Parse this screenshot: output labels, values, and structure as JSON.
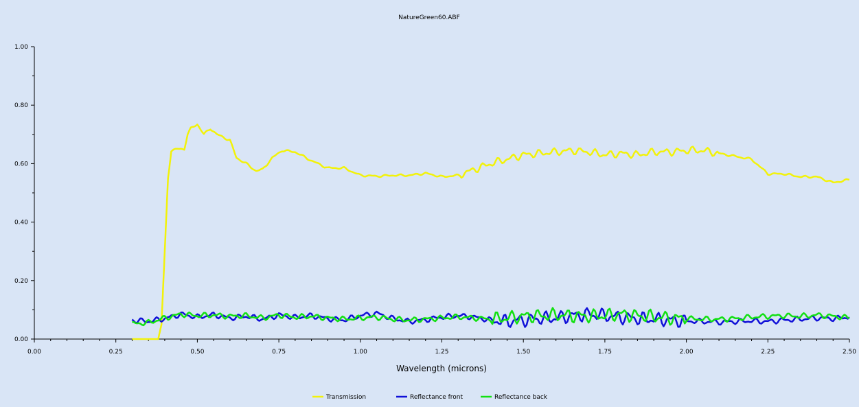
{
  "chart_data": {
    "type": "line",
    "title": "NatureGreen60.ABF",
    "xlabel": "Wavelength (microns)",
    "ylabel": "",
    "xlim": [
      0.0,
      2.5
    ],
    "ylim": [
      0.0,
      1.0
    ],
    "xticks": [
      "0.00",
      "0.25",
      "0.50",
      "0.75",
      "1.00",
      "1.25",
      "1.50",
      "1.75",
      "2.00",
      "2.25",
      "2.50"
    ],
    "yticks": [
      "0.00",
      "0.20",
      "0.40",
      "0.60",
      "0.80",
      "1.00"
    ],
    "grid": false,
    "legend_position": "bottom-center",
    "background_color": "#d9e5f6",
    "series": [
      {
        "name": "Transmission",
        "color": "#f2f20a",
        "points": [
          [
            0.3,
            0.0
          ],
          [
            0.38,
            0.0
          ],
          [
            0.39,
            0.05
          ],
          [
            0.4,
            0.3
          ],
          [
            0.41,
            0.55
          ],
          [
            0.42,
            0.645
          ],
          [
            0.44,
            0.65
          ],
          [
            0.46,
            0.65
          ],
          [
            0.47,
            0.7
          ],
          [
            0.48,
            0.72
          ],
          [
            0.5,
            0.735
          ],
          [
            0.52,
            0.7
          ],
          [
            0.54,
            0.72
          ],
          [
            0.56,
            0.7
          ],
          [
            0.58,
            0.69
          ],
          [
            0.6,
            0.68
          ],
          [
            0.62,
            0.62
          ],
          [
            0.65,
            0.6
          ],
          [
            0.68,
            0.575
          ],
          [
            0.7,
            0.58
          ],
          [
            0.73,
            0.62
          ],
          [
            0.76,
            0.645
          ],
          [
            0.8,
            0.64
          ],
          [
            0.85,
            0.61
          ],
          [
            0.9,
            0.585
          ],
          [
            0.95,
            0.585
          ],
          [
            1.0,
            0.56
          ],
          [
            1.05,
            0.557
          ],
          [
            1.1,
            0.56
          ],
          [
            1.15,
            0.56
          ],
          [
            1.2,
            0.567
          ],
          [
            1.25,
            0.555
          ],
          [
            1.3,
            0.56
          ],
          [
            1.35,
            0.58
          ],
          [
            1.4,
            0.6
          ],
          [
            1.45,
            0.615
          ],
          [
            1.5,
            0.63
          ],
          [
            1.55,
            0.635
          ],
          [
            1.6,
            0.64
          ],
          [
            1.65,
            0.645
          ],
          [
            1.7,
            0.64
          ],
          [
            1.75,
            0.63
          ],
          [
            1.8,
            0.635
          ],
          [
            1.85,
            0.63
          ],
          [
            1.9,
            0.64
          ],
          [
            1.95,
            0.64
          ],
          [
            2.0,
            0.645
          ],
          [
            2.05,
            0.645
          ],
          [
            2.1,
            0.635
          ],
          [
            2.15,
            0.625
          ],
          [
            2.2,
            0.615
          ],
          [
            2.25,
            0.565
          ],
          [
            2.3,
            0.565
          ],
          [
            2.35,
            0.555
          ],
          [
            2.4,
            0.555
          ],
          [
            2.45,
            0.535
          ],
          [
            2.5,
            0.545
          ]
        ]
      },
      {
        "name": "Reflectance front",
        "color": "#1010d8",
        "points": [
          [
            0.3,
            0.065
          ],
          [
            0.35,
            0.06
          ],
          [
            0.4,
            0.07
          ],
          [
            0.45,
            0.085
          ],
          [
            0.5,
            0.075
          ],
          [
            0.55,
            0.083
          ],
          [
            0.6,
            0.072
          ],
          [
            0.65,
            0.078
          ],
          [
            0.7,
            0.068
          ],
          [
            0.75,
            0.082
          ],
          [
            0.8,
            0.074
          ],
          [
            0.85,
            0.08
          ],
          [
            0.9,
            0.07
          ],
          [
            0.95,
            0.065
          ],
          [
            1.0,
            0.08
          ],
          [
            1.05,
            0.088
          ],
          [
            1.1,
            0.07
          ],
          [
            1.15,
            0.06
          ],
          [
            1.2,
            0.066
          ],
          [
            1.25,
            0.075
          ],
          [
            1.3,
            0.08
          ],
          [
            1.35,
            0.075
          ],
          [
            1.4,
            0.065
          ],
          [
            1.45,
            0.06
          ],
          [
            1.5,
            0.065
          ],
          [
            1.55,
            0.07
          ],
          [
            1.6,
            0.072
          ],
          [
            1.65,
            0.08
          ],
          [
            1.7,
            0.085
          ],
          [
            1.75,
            0.08
          ],
          [
            1.8,
            0.075
          ],
          [
            1.85,
            0.07
          ],
          [
            1.9,
            0.068
          ],
          [
            1.95,
            0.065
          ],
          [
            2.0,
            0.062
          ],
          [
            2.05,
            0.06
          ],
          [
            2.1,
            0.058
          ],
          [
            2.15,
            0.06
          ],
          [
            2.2,
            0.062
          ],
          [
            2.25,
            0.06
          ],
          [
            2.3,
            0.065
          ],
          [
            2.35,
            0.068
          ],
          [
            2.4,
            0.072
          ],
          [
            2.45,
            0.07
          ],
          [
            2.5,
            0.075
          ]
        ]
      },
      {
        "name": "Reflectance back",
        "color": "#12e012",
        "points": [
          [
            0.3,
            0.052
          ],
          [
            0.35,
            0.056
          ],
          [
            0.4,
            0.072
          ],
          [
            0.45,
            0.085
          ],
          [
            0.5,
            0.08
          ],
          [
            0.55,
            0.082
          ],
          [
            0.6,
            0.078
          ],
          [
            0.65,
            0.08
          ],
          [
            0.7,
            0.072
          ],
          [
            0.75,
            0.082
          ],
          [
            0.8,
            0.075
          ],
          [
            0.85,
            0.078
          ],
          [
            0.9,
            0.072
          ],
          [
            0.95,
            0.068
          ],
          [
            1.0,
            0.072
          ],
          [
            1.05,
            0.075
          ],
          [
            1.1,
            0.068
          ],
          [
            1.15,
            0.065
          ],
          [
            1.2,
            0.068
          ],
          [
            1.25,
            0.072
          ],
          [
            1.3,
            0.076
          ],
          [
            1.35,
            0.072
          ],
          [
            1.4,
            0.068
          ],
          [
            1.45,
            0.072
          ],
          [
            1.5,
            0.078
          ],
          [
            1.55,
            0.08
          ],
          [
            1.6,
            0.082
          ],
          [
            1.65,
            0.08
          ],
          [
            1.7,
            0.078
          ],
          [
            1.75,
            0.08
          ],
          [
            1.8,
            0.085
          ],
          [
            1.85,
            0.08
          ],
          [
            1.9,
            0.076
          ],
          [
            1.95,
            0.072
          ],
          [
            2.0,
            0.07
          ],
          [
            2.05,
            0.068
          ],
          [
            2.1,
            0.068
          ],
          [
            2.15,
            0.07
          ],
          [
            2.2,
            0.075
          ],
          [
            2.25,
            0.078
          ],
          [
            2.3,
            0.08
          ],
          [
            2.35,
            0.078
          ],
          [
            2.4,
            0.082
          ],
          [
            2.45,
            0.078
          ],
          [
            2.5,
            0.072
          ]
        ]
      }
    ]
  }
}
